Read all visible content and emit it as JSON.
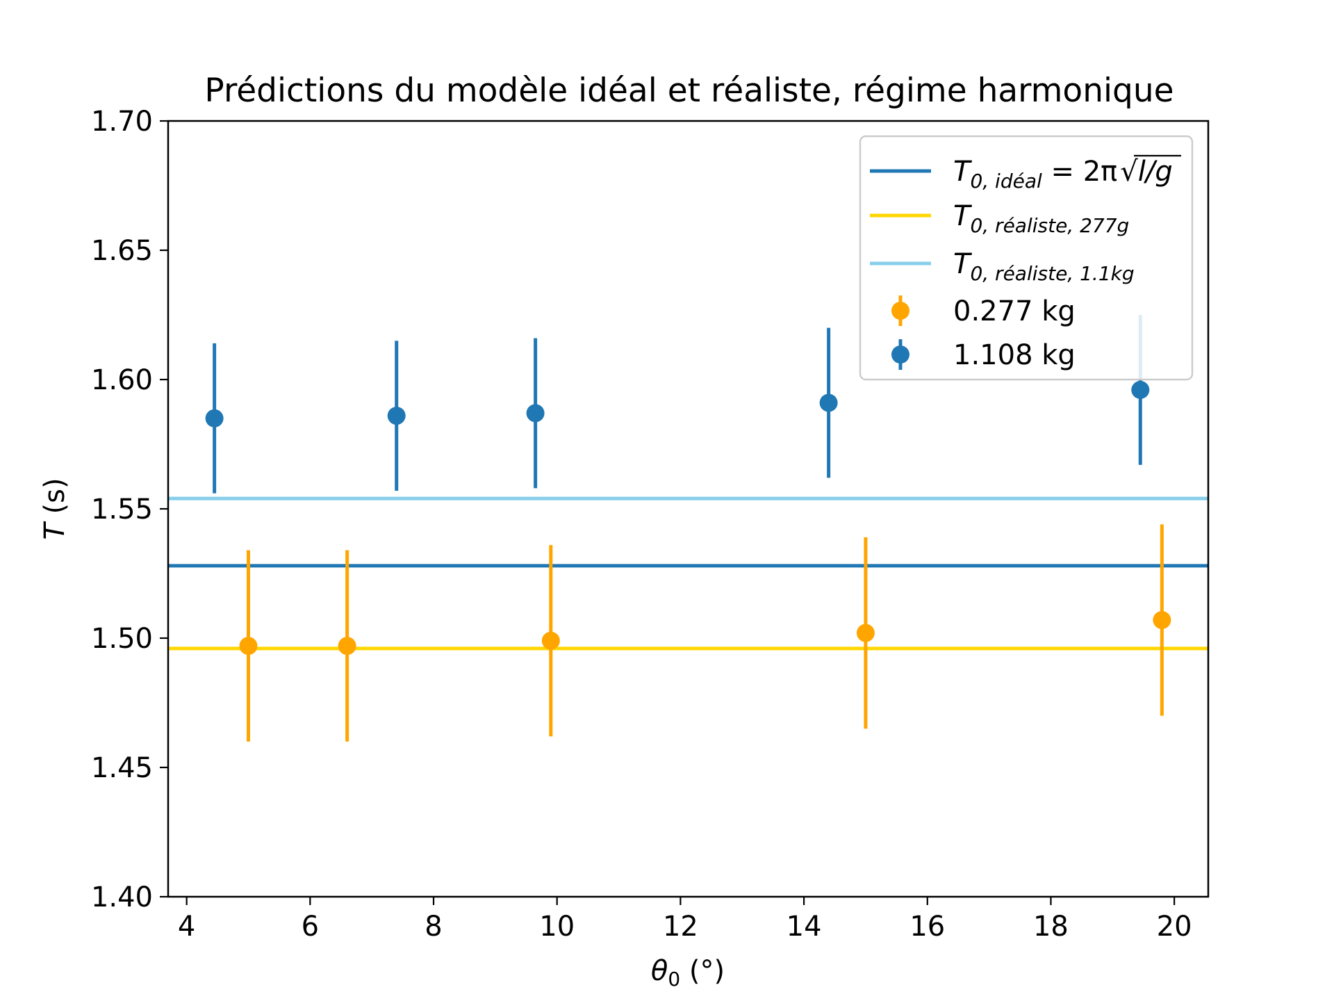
{
  "chart_data": {
    "type": "scatter",
    "title": "Prédictions du modèle idéal et réaliste, régime harmonique",
    "xlabel": {
      "symbol": "θ",
      "sub": "0",
      "unit": " (°)"
    },
    "ylabel": {
      "symbol": "T",
      "unit": " (s)"
    },
    "xlim": [
      3.7,
      20.55
    ],
    "ylim": [
      1.4,
      1.7
    ],
    "xticks": [
      4,
      6,
      8,
      10,
      12,
      14,
      16,
      18,
      20
    ],
    "yticks": [
      1.4,
      1.45,
      1.5,
      1.55,
      1.6,
      1.65,
      1.7
    ],
    "ytick_labels": [
      "1.40",
      "1.45",
      "1.50",
      "1.55",
      "1.60",
      "1.65",
      "1.70"
    ],
    "grid": false,
    "legend_position": "top-right",
    "lines": [
      {
        "name": "T0,idéal = 2π√(l/g)",
        "label_main": "T",
        "label_sub": "0, idéal",
        "label_rest": " = 2π",
        "label_sqrt": "l/g",
        "y": 1.528,
        "color": "#1f77b4"
      },
      {
        "name": "T0,réaliste,277g",
        "label_main": "T",
        "label_sub": "0, réaliste, 277g",
        "label_rest": "",
        "label_sqrt": "",
        "y": 1.496,
        "color": "#ffd700"
      },
      {
        "name": "T0,réaliste,1.1kg",
        "label_main": "T",
        "label_sub": "0, réaliste, 1.1kg",
        "label_rest": "",
        "label_sqrt": "",
        "y": 1.554,
        "color": "#87ceeb"
      }
    ],
    "series": [
      {
        "name": "0.277 kg",
        "color": "#ffa500",
        "x": [
          5.0,
          6.6,
          9.9,
          15.0,
          19.8
        ],
        "y": [
          1.497,
          1.497,
          1.499,
          1.502,
          1.507
        ],
        "yerr": [
          0.037,
          0.037,
          0.037,
          0.037,
          0.037
        ]
      },
      {
        "name": "1.108 kg",
        "color": "#1f77b4",
        "x": [
          4.45,
          7.4,
          9.65,
          14.4,
          19.45
        ],
        "y": [
          1.585,
          1.586,
          1.587,
          1.591,
          1.596
        ],
        "yerr": [
          0.029,
          0.029,
          0.029,
          0.029,
          0.029
        ]
      }
    ]
  }
}
